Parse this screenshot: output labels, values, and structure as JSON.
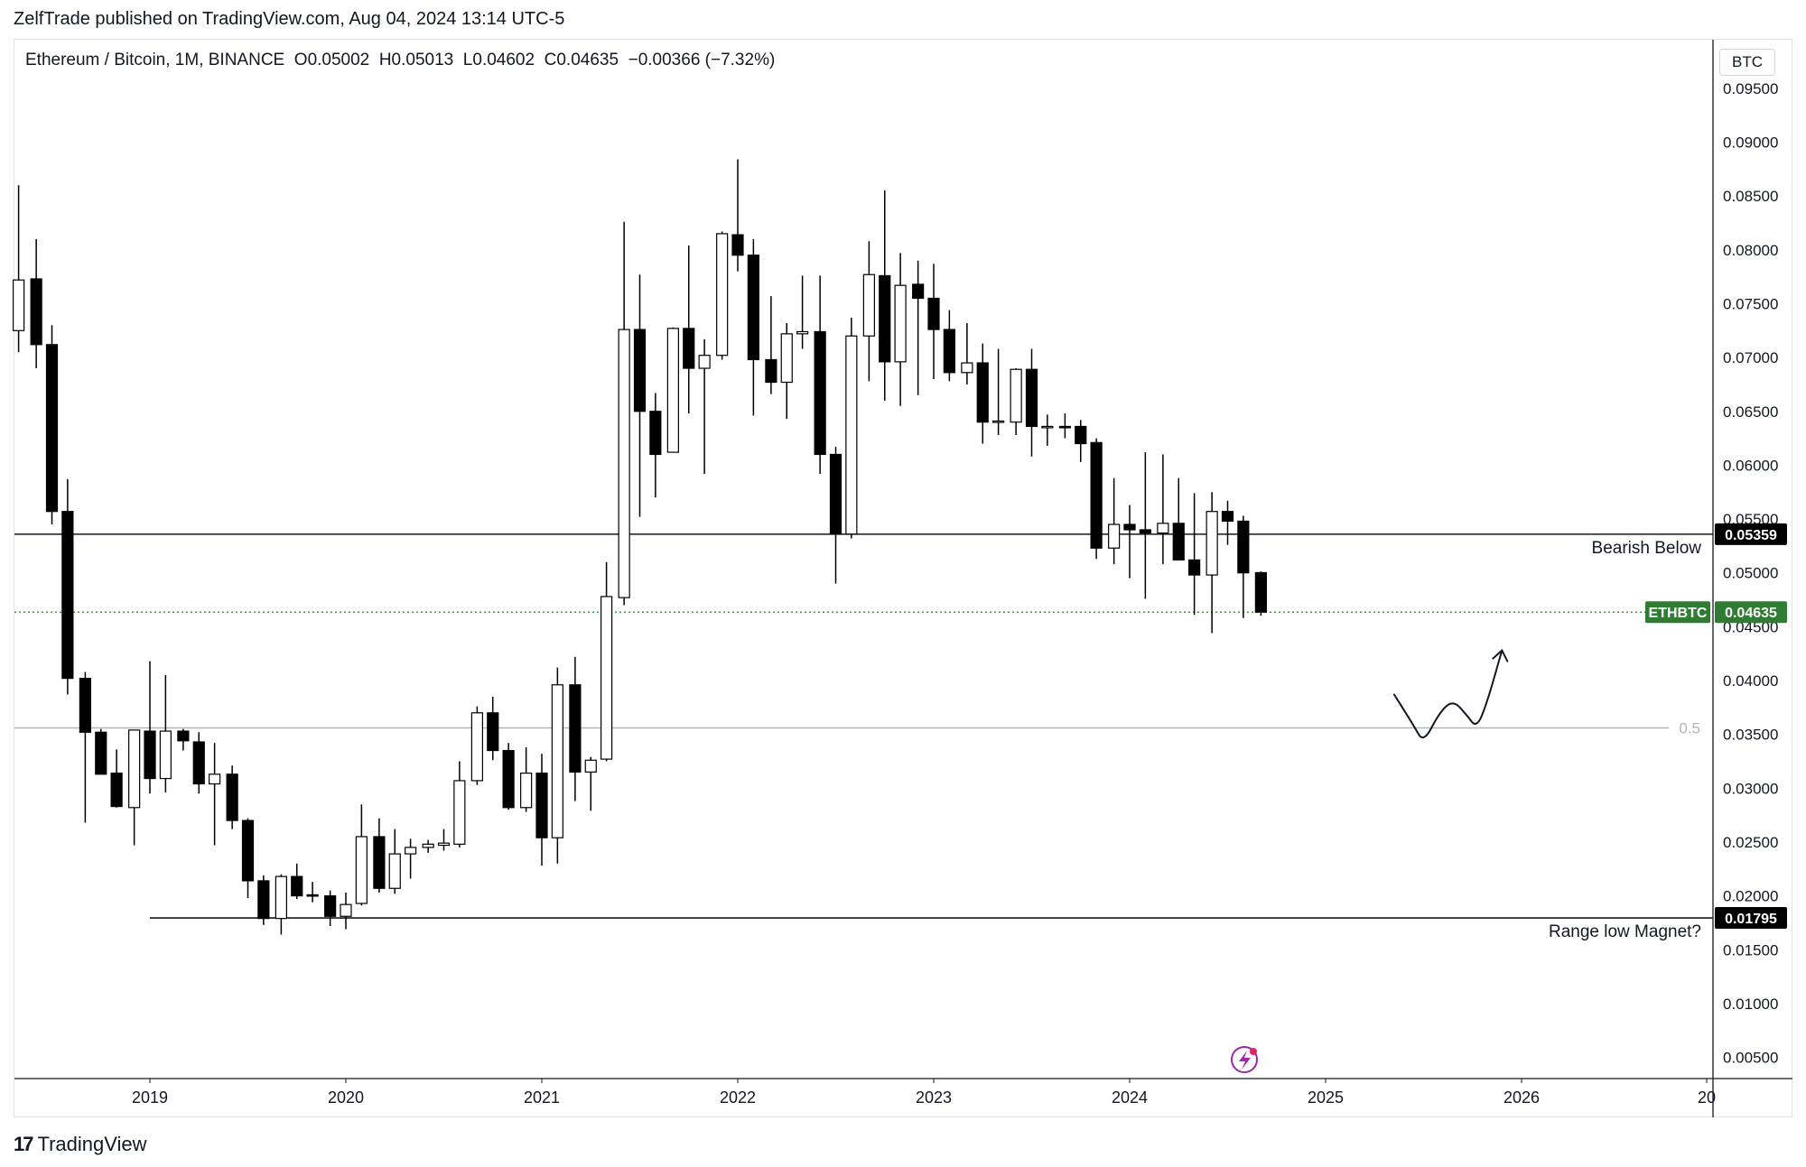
{
  "header": {
    "published": "ZelfTrade published on TradingView.com, Aug 04, 2024 13:14 UTC-5"
  },
  "legend": {
    "symbol": "Ethereum / Bitcoin, 1M, BINANCE",
    "o_label": "O",
    "o": "0.05002",
    "h_label": "H",
    "h": "0.05013",
    "l_label": "L",
    "l": "0.04602",
    "c_label": "C",
    "c": "0.04635",
    "change": "−0.00366 (−7.32%)"
  },
  "currency": "BTC",
  "footer": {
    "brand": "TradingView",
    "logo_icon": "tradingview-logo-icon"
  },
  "annotations": {
    "bearish_label": "Bearish Below",
    "range_label": "Range low Magnet?",
    "fib_label": "0.5"
  },
  "price_tags": [
    {
      "name": "bearish-level-tag",
      "value": "0.05359",
      "bg": "#000000",
      "fg": "#ffffff"
    },
    {
      "name": "range-low-tag",
      "value": "0.01795",
      "bg": "#000000",
      "fg": "#ffffff"
    },
    {
      "name": "last-price-tag",
      "value": "0.04635",
      "bg": "#2e7d32",
      "fg": "#ffffff",
      "symbol": "ETHBTC"
    }
  ],
  "colors": {
    "up_body": "#ffffff",
    "down_body": "#000000",
    "wick": "#000000",
    "last_price": "#2e7d32",
    "fib": "#b2b5be"
  },
  "chart_data": {
    "type": "candlestick",
    "title": "Ethereum / Bitcoin, 1M, BINANCE",
    "interval": "1M",
    "x_ticks": [
      "2019",
      "2020",
      "2021",
      "2022",
      "2023",
      "2024",
      "2025",
      "2026",
      "20"
    ],
    "y_ticks": [
      "0.09500",
      "0.09000",
      "0.08500",
      "0.08000",
      "0.07500",
      "0.07000",
      "0.06500",
      "0.06000",
      "0.05500",
      "0.05000",
      "0.04500",
      "0.04000",
      "0.03500",
      "0.03000",
      "0.02500",
      "0.02000",
      "0.01500",
      "0.01000",
      "0.00500"
    ],
    "ylim": [
      0,
      0.0985
    ],
    "horizontal_levels": [
      {
        "label": "Bearish Below",
        "value": 0.05359
      },
      {
        "label": "Range low Magnet?",
        "value": 0.01795
      },
      {
        "label": "0.5",
        "value": 0.0356
      }
    ],
    "projection_path": [
      [
        2025.35,
        0.0387
      ],
      [
        2025.45,
        0.0358
      ],
      [
        2025.5,
        0.0342
      ],
      [
        2025.58,
        0.037
      ],
      [
        2025.65,
        0.0382
      ],
      [
        2025.72,
        0.0368
      ],
      [
        2025.77,
        0.0356
      ],
      [
        2025.82,
        0.0377
      ],
      [
        2025.9,
        0.0428
      ]
    ],
    "candles": [
      {
        "t": 2018.33,
        "o": 0.0725,
        "h": 0.086,
        "l": 0.0705,
        "c": 0.0772
      },
      {
        "t": 2018.42,
        "o": 0.0773,
        "h": 0.081,
        "l": 0.069,
        "c": 0.0712
      },
      {
        "t": 2018.5,
        "o": 0.0712,
        "h": 0.073,
        "l": 0.0545,
        "c": 0.0557
      },
      {
        "t": 2018.58,
        "o": 0.0557,
        "h": 0.0587,
        "l": 0.0387,
        "c": 0.0402
      },
      {
        "t": 2018.67,
        "o": 0.0402,
        "h": 0.0408,
        "l": 0.0268,
        "c": 0.0352
      },
      {
        "t": 2018.75,
        "o": 0.0352,
        "h": 0.0355,
        "l": 0.0313,
        "c": 0.0313
      },
      {
        "t": 2018.83,
        "o": 0.0314,
        "h": 0.0336,
        "l": 0.0282,
        "c": 0.0283
      },
      {
        "t": 2018.92,
        "o": 0.0282,
        "h": 0.0354,
        "l": 0.0247,
        "c": 0.0354
      },
      {
        "t": 2019.0,
        "o": 0.0353,
        "h": 0.0418,
        "l": 0.0295,
        "c": 0.0309
      },
      {
        "t": 2019.08,
        "o": 0.0309,
        "h": 0.0405,
        "l": 0.0296,
        "c": 0.0353
      },
      {
        "t": 2019.17,
        "o": 0.0353,
        "h": 0.0355,
        "l": 0.0335,
        "c": 0.0344
      },
      {
        "t": 2019.25,
        "o": 0.0343,
        "h": 0.0352,
        "l": 0.0295,
        "c": 0.0304
      },
      {
        "t": 2019.33,
        "o": 0.0304,
        "h": 0.0342,
        "l": 0.0247,
        "c": 0.0313
      },
      {
        "t": 2019.42,
        "o": 0.0313,
        "h": 0.0321,
        "l": 0.0262,
        "c": 0.027
      },
      {
        "t": 2019.5,
        "o": 0.027,
        "h": 0.0272,
        "l": 0.0198,
        "c": 0.0214
      },
      {
        "t": 2019.58,
        "o": 0.0214,
        "h": 0.0219,
        "l": 0.0173,
        "c": 0.0179
      },
      {
        "t": 2019.67,
        "o": 0.0179,
        "h": 0.022,
        "l": 0.0164,
        "c": 0.0218
      },
      {
        "t": 2019.75,
        "o": 0.0218,
        "h": 0.023,
        "l": 0.0197,
        "c": 0.02
      },
      {
        "t": 2019.83,
        "o": 0.0201,
        "h": 0.0213,
        "l": 0.0194,
        "c": 0.02
      },
      {
        "t": 2019.92,
        "o": 0.02,
        "h": 0.0205,
        "l": 0.0172,
        "c": 0.0181
      },
      {
        "t": 2020.0,
        "o": 0.0181,
        "h": 0.0203,
        "l": 0.0169,
        "c": 0.0192
      },
      {
        "t": 2020.08,
        "o": 0.0193,
        "h": 0.0285,
        "l": 0.0191,
        "c": 0.0255
      },
      {
        "t": 2020.17,
        "o": 0.0255,
        "h": 0.0272,
        "l": 0.0203,
        "c": 0.0207
      },
      {
        "t": 2020.25,
        "o": 0.0207,
        "h": 0.0262,
        "l": 0.0202,
        "c": 0.0239
      },
      {
        "t": 2020.33,
        "o": 0.0239,
        "h": 0.0253,
        "l": 0.0216,
        "c": 0.0245
      },
      {
        "t": 2020.42,
        "o": 0.0245,
        "h": 0.0252,
        "l": 0.024,
        "c": 0.0248
      },
      {
        "t": 2020.5,
        "o": 0.0247,
        "h": 0.0262,
        "l": 0.0242,
        "c": 0.0249
      },
      {
        "t": 2020.58,
        "o": 0.0248,
        "h": 0.0325,
        "l": 0.0245,
        "c": 0.0307
      },
      {
        "t": 2020.67,
        "o": 0.0307,
        "h": 0.0376,
        "l": 0.0303,
        "c": 0.037
      },
      {
        "t": 2020.75,
        "o": 0.037,
        "h": 0.0385,
        "l": 0.0326,
        "c": 0.0335
      },
      {
        "t": 2020.83,
        "o": 0.0335,
        "h": 0.0342,
        "l": 0.028,
        "c": 0.0282
      },
      {
        "t": 2020.92,
        "o": 0.0282,
        "h": 0.0338,
        "l": 0.0278,
        "c": 0.0314
      },
      {
        "t": 2021.0,
        "o": 0.0314,
        "h": 0.0332,
        "l": 0.0228,
        "c": 0.0254
      },
      {
        "t": 2021.08,
        "o": 0.0254,
        "h": 0.0412,
        "l": 0.023,
        "c": 0.0396
      },
      {
        "t": 2021.17,
        "o": 0.0396,
        "h": 0.0422,
        "l": 0.0288,
        "c": 0.0315
      },
      {
        "t": 2021.25,
        "o": 0.0315,
        "h": 0.0329,
        "l": 0.0279,
        "c": 0.0326
      },
      {
        "t": 2021.33,
        "o": 0.0327,
        "h": 0.051,
        "l": 0.0325,
        "c": 0.0478
      },
      {
        "t": 2021.42,
        "o": 0.0477,
        "h": 0.0826,
        "l": 0.047,
        "c": 0.0726
      },
      {
        "t": 2021.5,
        "o": 0.0726,
        "h": 0.0777,
        "l": 0.0552,
        "c": 0.065
      },
      {
        "t": 2021.58,
        "o": 0.065,
        "h": 0.0667,
        "l": 0.057,
        "c": 0.061
      },
      {
        "t": 2021.67,
        "o": 0.0612,
        "h": 0.0728,
        "l": 0.0612,
        "c": 0.0727
      },
      {
        "t": 2021.75,
        "o": 0.0727,
        "h": 0.0804,
        "l": 0.0648,
        "c": 0.069
      },
      {
        "t": 2021.83,
        "o": 0.069,
        "h": 0.0717,
        "l": 0.0592,
        "c": 0.0702
      },
      {
        "t": 2021.92,
        "o": 0.0702,
        "h": 0.0817,
        "l": 0.0698,
        "c": 0.0815
      },
      {
        "t": 2022.0,
        "o": 0.0814,
        "h": 0.0884,
        "l": 0.078,
        "c": 0.0795
      },
      {
        "t": 2022.08,
        "o": 0.0795,
        "h": 0.081,
        "l": 0.0646,
        "c": 0.0698
      },
      {
        "t": 2022.17,
        "o": 0.0698,
        "h": 0.0757,
        "l": 0.0666,
        "c": 0.0677
      },
      {
        "t": 2022.25,
        "o": 0.0677,
        "h": 0.0732,
        "l": 0.0643,
        "c": 0.0722
      },
      {
        "t": 2022.33,
        "o": 0.0722,
        "h": 0.0776,
        "l": 0.0708,
        "c": 0.0724
      },
      {
        "t": 2022.42,
        "o": 0.0724,
        "h": 0.0776,
        "l": 0.0592,
        "c": 0.061
      },
      {
        "t": 2022.5,
        "o": 0.061,
        "h": 0.0617,
        "l": 0.049,
        "c": 0.0536
      },
      {
        "t": 2022.58,
        "o": 0.0536,
        "h": 0.0737,
        "l": 0.0532,
        "c": 0.072
      },
      {
        "t": 2022.67,
        "o": 0.072,
        "h": 0.0808,
        "l": 0.0678,
        "c": 0.0777
      },
      {
        "t": 2022.75,
        "o": 0.0776,
        "h": 0.0855,
        "l": 0.066,
        "c": 0.0696
      },
      {
        "t": 2022.83,
        "o": 0.0696,
        "h": 0.0797,
        "l": 0.0655,
        "c": 0.0767
      },
      {
        "t": 2022.92,
        "o": 0.0768,
        "h": 0.079,
        "l": 0.0665,
        "c": 0.0755
      },
      {
        "t": 2023.0,
        "o": 0.0755,
        "h": 0.0787,
        "l": 0.068,
        "c": 0.0726
      },
      {
        "t": 2023.08,
        "o": 0.0726,
        "h": 0.0744,
        "l": 0.0678,
        "c": 0.0686
      },
      {
        "t": 2023.17,
        "o": 0.0686,
        "h": 0.0732,
        "l": 0.0675,
        "c": 0.0695
      },
      {
        "t": 2023.25,
        "o": 0.0695,
        "h": 0.0713,
        "l": 0.062,
        "c": 0.064
      },
      {
        "t": 2023.33,
        "o": 0.064,
        "h": 0.0708,
        "l": 0.0628,
        "c": 0.0641
      },
      {
        "t": 2023.42,
        "o": 0.064,
        "h": 0.069,
        "l": 0.0628,
        "c": 0.0689
      },
      {
        "t": 2023.5,
        "o": 0.0689,
        "h": 0.0708,
        "l": 0.0608,
        "c": 0.0636
      },
      {
        "t": 2023.58,
        "o": 0.0636,
        "h": 0.0647,
        "l": 0.0618,
        "c": 0.0636
      },
      {
        "t": 2023.67,
        "o": 0.0636,
        "h": 0.0648,
        "l": 0.0625,
        "c": 0.0635
      },
      {
        "t": 2023.75,
        "o": 0.0636,
        "h": 0.0642,
        "l": 0.0603,
        "c": 0.062
      },
      {
        "t": 2023.83,
        "o": 0.0621,
        "h": 0.0625,
        "l": 0.0513,
        "c": 0.0523
      },
      {
        "t": 2023.92,
        "o": 0.0523,
        "h": 0.0588,
        "l": 0.0508,
        "c": 0.0545
      },
      {
        "t": 2024.0,
        "o": 0.0545,
        "h": 0.0563,
        "l": 0.0495,
        "c": 0.054
      },
      {
        "t": 2024.08,
        "o": 0.054,
        "h": 0.0612,
        "l": 0.0476,
        "c": 0.0537
      },
      {
        "t": 2024.17,
        "o": 0.0537,
        "h": 0.061,
        "l": 0.0508,
        "c": 0.0546
      },
      {
        "t": 2024.25,
        "o": 0.0546,
        "h": 0.0588,
        "l": 0.0512,
        "c": 0.0512
      },
      {
        "t": 2024.33,
        "o": 0.0512,
        "h": 0.0574,
        "l": 0.0461,
        "c": 0.0498
      },
      {
        "t": 2024.42,
        "o": 0.0498,
        "h": 0.0575,
        "l": 0.0444,
        "c": 0.0557
      },
      {
        "t": 2024.5,
        "o": 0.0557,
        "h": 0.0567,
        "l": 0.0526,
        "c": 0.0548
      },
      {
        "t": 2024.58,
        "o": 0.0548,
        "h": 0.0553,
        "l": 0.0458,
        "c": 0.05
      },
      {
        "t": 2024.67,
        "o": 0.05002,
        "h": 0.05013,
        "l": 0.04602,
        "c": 0.04635
      }
    ]
  }
}
